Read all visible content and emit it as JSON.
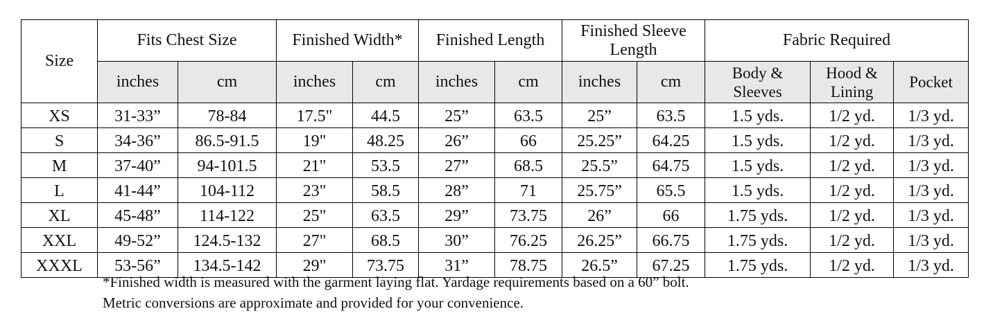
{
  "table": {
    "size_header": "Size",
    "groups": [
      "Fits Chest Size",
      "Finished Width*",
      "Finished Length",
      "Finished Sleeve Length",
      "Fabric Required"
    ],
    "subheaders": [
      "inches",
      "cm",
      "inches",
      "cm",
      "inches",
      "cm",
      "inches",
      "cm",
      "Body & Sleeves",
      "Hood & Lining",
      "Pocket"
    ],
    "rows": [
      [
        "XS",
        "31-33”",
        "78-84",
        "17.5\"",
        "44.5",
        "25”",
        "63.5",
        "25”",
        "63.5",
        "1.5 yds.",
        "1/2 yd.",
        "1/3 yd."
      ],
      [
        "S",
        "34-36”",
        "86.5-91.5",
        "19\"",
        "48.25",
        "26”",
        "66",
        "25.25”",
        "64.25",
        "1.5 yds.",
        "1/2 yd.",
        "1/3 yd."
      ],
      [
        "M",
        "37-40”",
        "94-101.5",
        "21\"",
        "53.5",
        "27”",
        "68.5",
        "25.5”",
        "64.75",
        "1.5 yds.",
        "1/2 yd.",
        "1/3 yd."
      ],
      [
        "L",
        "41-44”",
        "104-112",
        "23\"",
        "58.5",
        "28”",
        "71",
        "25.75”",
        "65.5",
        "1.5 yds.",
        "1/2 yd.",
        "1/3 yd."
      ],
      [
        "XL",
        "45-48”",
        "114-122",
        "25\"",
        "63.5",
        "29”",
        "73.75",
        "26”",
        "66",
        "1.75 yds.",
        "1/2 yd.",
        "1/3 yd."
      ],
      [
        "XXL",
        "49-52”",
        "124.5-132",
        "27\"",
        "68.5",
        "30”",
        "76.25",
        "26.25”",
        "66.75",
        "1.75 yds.",
        "1/2 yd.",
        "1/3 yd."
      ],
      [
        "XXXL",
        "53-56”",
        "134.5-142",
        "29\"",
        "73.75",
        "31”",
        "78.75",
        "26.5”",
        "67.25",
        "1.75 yds.",
        "1/2 yd.",
        "1/3 yd."
      ]
    ]
  },
  "footnotes": [
    "*Finished width is measured with the garment laying flat. Yardage requirements based on a 60” bolt.",
    "Metric conversions are approximate and provided for your convenience."
  ]
}
